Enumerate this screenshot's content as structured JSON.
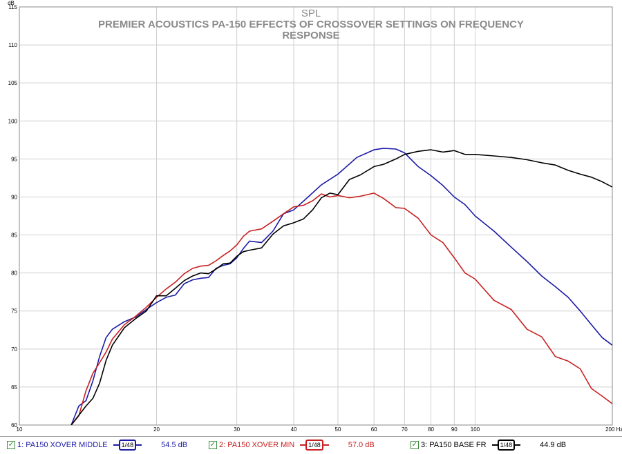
{
  "chart_data": {
    "type": "line",
    "title_top": "SPL",
    "title_lines": [
      "PREMIER ACOUSTICS PA-150 EFFECTS OF CROSSOVER SETTINGS ON FREQUENCY",
      "RESPONSE"
    ],
    "y_unit": "dB",
    "x_unit": "Hz",
    "x_scale": "log",
    "xlim": [
      10,
      200
    ],
    "ylim": [
      60,
      115
    ],
    "x_ticks": [
      10,
      20,
      30,
      40,
      50,
      60,
      70,
      80,
      90,
      100,
      200
    ],
    "x_tick_labels": [
      "10",
      "20",
      "30",
      "40",
      "50",
      "60",
      "70",
      "80",
      "90",
      "100",
      "200 Hz"
    ],
    "y_ticks": [
      60,
      65,
      70,
      75,
      80,
      85,
      90,
      95,
      100,
      105,
      110,
      115
    ],
    "y_tick_labels": [
      "60",
      "65",
      "70",
      "75",
      "80",
      "85",
      "90",
      "95",
      "100",
      "105",
      "110",
      "115"
    ],
    "grid": true,
    "series": [
      {
        "name": "1: PA150 XOVER MIDDLE",
        "color": "#1a1aa8",
        "x": [
          13.0,
          13.5,
          14.0,
          14.5,
          15.0,
          15.5,
          16.0,
          17.0,
          18.0,
          19.0,
          20.0,
          21.0,
          22.0,
          23.0,
          24.0,
          25.0,
          26.0,
          27.0,
          28.0,
          29.0,
          30.0,
          31.0,
          32.0,
          34.0,
          36.0,
          38.0,
          40.0,
          43.0,
          46.0,
          50.0,
          55.0,
          60.0,
          63.0,
          67.0,
          70.0,
          75.0,
          80.0,
          85.0,
          90.0,
          95.0,
          100.0,
          110.0,
          120.0,
          130.0,
          140.0,
          150.0,
          160.0,
          170.0,
          180.0,
          190.0,
          200.0
        ],
        "y": [
          60.0,
          62.5,
          63.2,
          65.8,
          69.0,
          71.5,
          72.6,
          73.6,
          74.2,
          75.2,
          76.1,
          76.8,
          77.1,
          78.6,
          79.1,
          79.3,
          79.4,
          80.6,
          81.0,
          81.2,
          82.0,
          83.2,
          84.2,
          84.0,
          85.5,
          87.8,
          88.3,
          90.0,
          91.6,
          93.0,
          95.2,
          96.2,
          96.4,
          96.3,
          95.8,
          94.0,
          92.8,
          91.5,
          90.0,
          89.0,
          87.5,
          85.5,
          83.4,
          81.5,
          79.6,
          78.2,
          76.8,
          75.0,
          73.2,
          71.5,
          70.5
        ]
      },
      {
        "name": "2: PA150 XOVER MIN",
        "color": "#c82020",
        "x": [
          13.0,
          13.5,
          14.0,
          14.5,
          15.0,
          15.5,
          16.0,
          17.0,
          18.0,
          19.0,
          20.0,
          21.0,
          22.0,
          23.0,
          24.0,
          25.0,
          26.0,
          27.0,
          28.0,
          29.0,
          30.0,
          31.0,
          32.0,
          34.0,
          36.0,
          38.0,
          40.0,
          42.0,
          44.0,
          46.0,
          48.0,
          50.0,
          53.0,
          56.0,
          60.0,
          63.0,
          67.0,
          70.0,
          75.0,
          80.0,
          85.0,
          90.0,
          95.0,
          100.0,
          110.0,
          120.0,
          130.0,
          140.0,
          150.0,
          160.0,
          170.0,
          180.0,
          190.0,
          200.0
        ],
        "y": [
          60.0,
          61.2,
          64.5,
          66.8,
          68.2,
          69.6,
          71.3,
          73.2,
          74.3,
          75.5,
          76.8,
          77.9,
          78.8,
          79.9,
          80.6,
          80.9,
          81.0,
          81.6,
          82.3,
          82.9,
          83.7,
          84.8,
          85.5,
          85.8,
          86.8,
          87.8,
          88.7,
          88.9,
          89.5,
          90.4,
          90.0,
          90.2,
          89.9,
          90.1,
          90.5,
          89.8,
          88.6,
          88.5,
          87.2,
          85.0,
          84.0,
          82.0,
          80.0,
          79.2,
          76.4,
          75.2,
          72.6,
          71.6,
          69.0,
          68.4,
          67.4,
          64.8,
          63.8,
          62.8
        ]
      },
      {
        "name": "3: PA150 BASE FR",
        "color": "#000000",
        "x": [
          13.0,
          14.0,
          14.5,
          15.0,
          15.5,
          16.0,
          17.0,
          18.0,
          19.0,
          20.0,
          21.0,
          22.0,
          23.0,
          24.0,
          25.0,
          26.0,
          27.0,
          28.0,
          29.0,
          30.0,
          31.0,
          32.0,
          34.0,
          36.0,
          38.0,
          40.0,
          42.0,
          44.0,
          46.0,
          48.0,
          50.0,
          53.0,
          56.0,
          60.0,
          63.0,
          67.0,
          70.0,
          75.0,
          80.0,
          85.0,
          90.0,
          95.0,
          100.0,
          110.0,
          120.0,
          130.0,
          140.0,
          150.0,
          160.0,
          170.0,
          180.0,
          190.0,
          200.0
        ],
        "y": [
          60.0,
          62.5,
          63.5,
          65.5,
          68.5,
          70.5,
          72.8,
          74.0,
          75.0,
          77.0,
          77.0,
          78.0,
          79.0,
          79.6,
          80.0,
          79.9,
          80.5,
          81.2,
          81.3,
          82.2,
          82.8,
          83.0,
          83.3,
          85.1,
          86.2,
          86.6,
          87.1,
          88.3,
          89.9,
          90.5,
          90.3,
          92.3,
          92.9,
          94.0,
          94.3,
          95.0,
          95.6,
          96.0,
          96.2,
          95.9,
          96.1,
          95.6,
          95.6,
          95.4,
          95.2,
          94.9,
          94.5,
          94.2,
          93.5,
          93.0,
          92.6,
          92.0,
          91.3
        ]
      }
    ]
  },
  "legend": [
    {
      "check": "✓",
      "label": "1: PA150 XOVER MIDDLE",
      "filter": "1/48",
      "value": "54.5 dB",
      "color": "#1a1aa8"
    },
    {
      "check": "✓",
      "label": "2: PA150 XOVER MIN",
      "filter": "1/48",
      "value": "57.0 dB",
      "color": "#c82020"
    },
    {
      "check": "✓",
      "label": "3: PA150 BASE FR",
      "filter": "1/48",
      "value": "44.9 dB",
      "color": "#000000"
    }
  ]
}
